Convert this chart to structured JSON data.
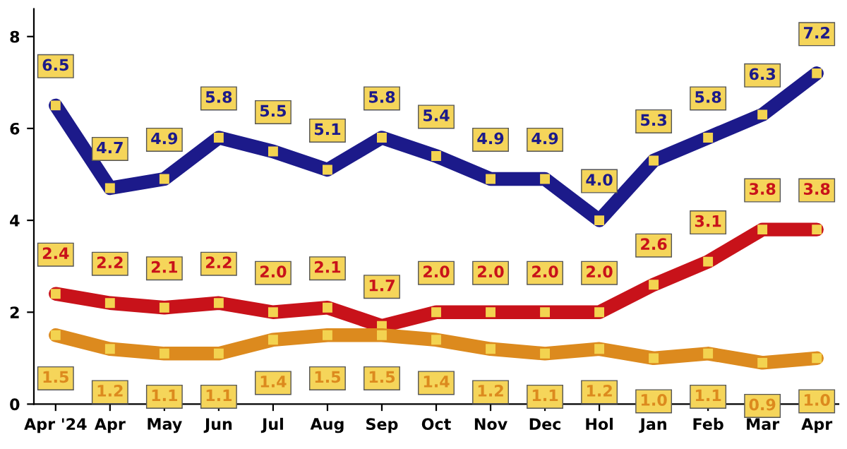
{
  "chart_data": {
    "type": "line",
    "categories": [
      "Apr '24",
      "Apr",
      "May",
      "Jun",
      "Jul",
      "Aug",
      "Sep",
      "Oct",
      "Nov",
      "Dec",
      "Hol",
      "Jan",
      "Feb",
      "Mar",
      "Apr"
    ],
    "series": [
      {
        "color": "#1c1a8a",
        "values": [
          6.5,
          4.7,
          4.9,
          5.8,
          5.5,
          5.1,
          5.8,
          5.4,
          4.9,
          4.9,
          4.0,
          5.3,
          5.8,
          6.3,
          7.2
        ],
        "value_labels": [
          "6.5",
          "4.7",
          "4.9",
          "5.8",
          "5.5",
          "5.1",
          "5.8",
          "5.4",
          "4.9",
          "4.9",
          "4.0",
          "5.3",
          "5.8",
          "6.3",
          "7.2"
        ]
      },
      {
        "color": "#c8121a",
        "values": [
          2.4,
          2.2,
          2.1,
          2.2,
          2.0,
          2.1,
          1.7,
          2.0,
          2.0,
          2.0,
          2.0,
          2.6,
          3.1,
          3.8,
          3.8
        ],
        "value_labels": [
          "2.4",
          "2.2",
          "2.1",
          "2.2",
          "2.0",
          "2.1",
          "1.7",
          "2.0",
          "2.0",
          "2.0",
          "2.0",
          "2.6",
          "3.1",
          "3.8",
          "3.8"
        ]
      },
      {
        "color": "#dc8a1e",
        "values": [
          1.5,
          1.2,
          1.1,
          1.1,
          1.4,
          1.5,
          1.5,
          1.4,
          1.2,
          1.1,
          1.2,
          1.0,
          1.1,
          0.9,
          1.0
        ],
        "value_labels": [
          "1.5",
          "1.2",
          "1.1",
          "1.1",
          "1.4",
          "1.5",
          "1.5",
          "1.4",
          "1.2",
          "1.1",
          "1.2",
          "1.0",
          "1.1",
          "0.9",
          "1.0"
        ]
      }
    ],
    "ylim": [
      0,
      8.6
    ],
    "yticks": [
      0,
      2,
      4,
      6,
      8
    ],
    "grid": false,
    "marker": "square",
    "line_style": "solid",
    "legend": false
  }
}
